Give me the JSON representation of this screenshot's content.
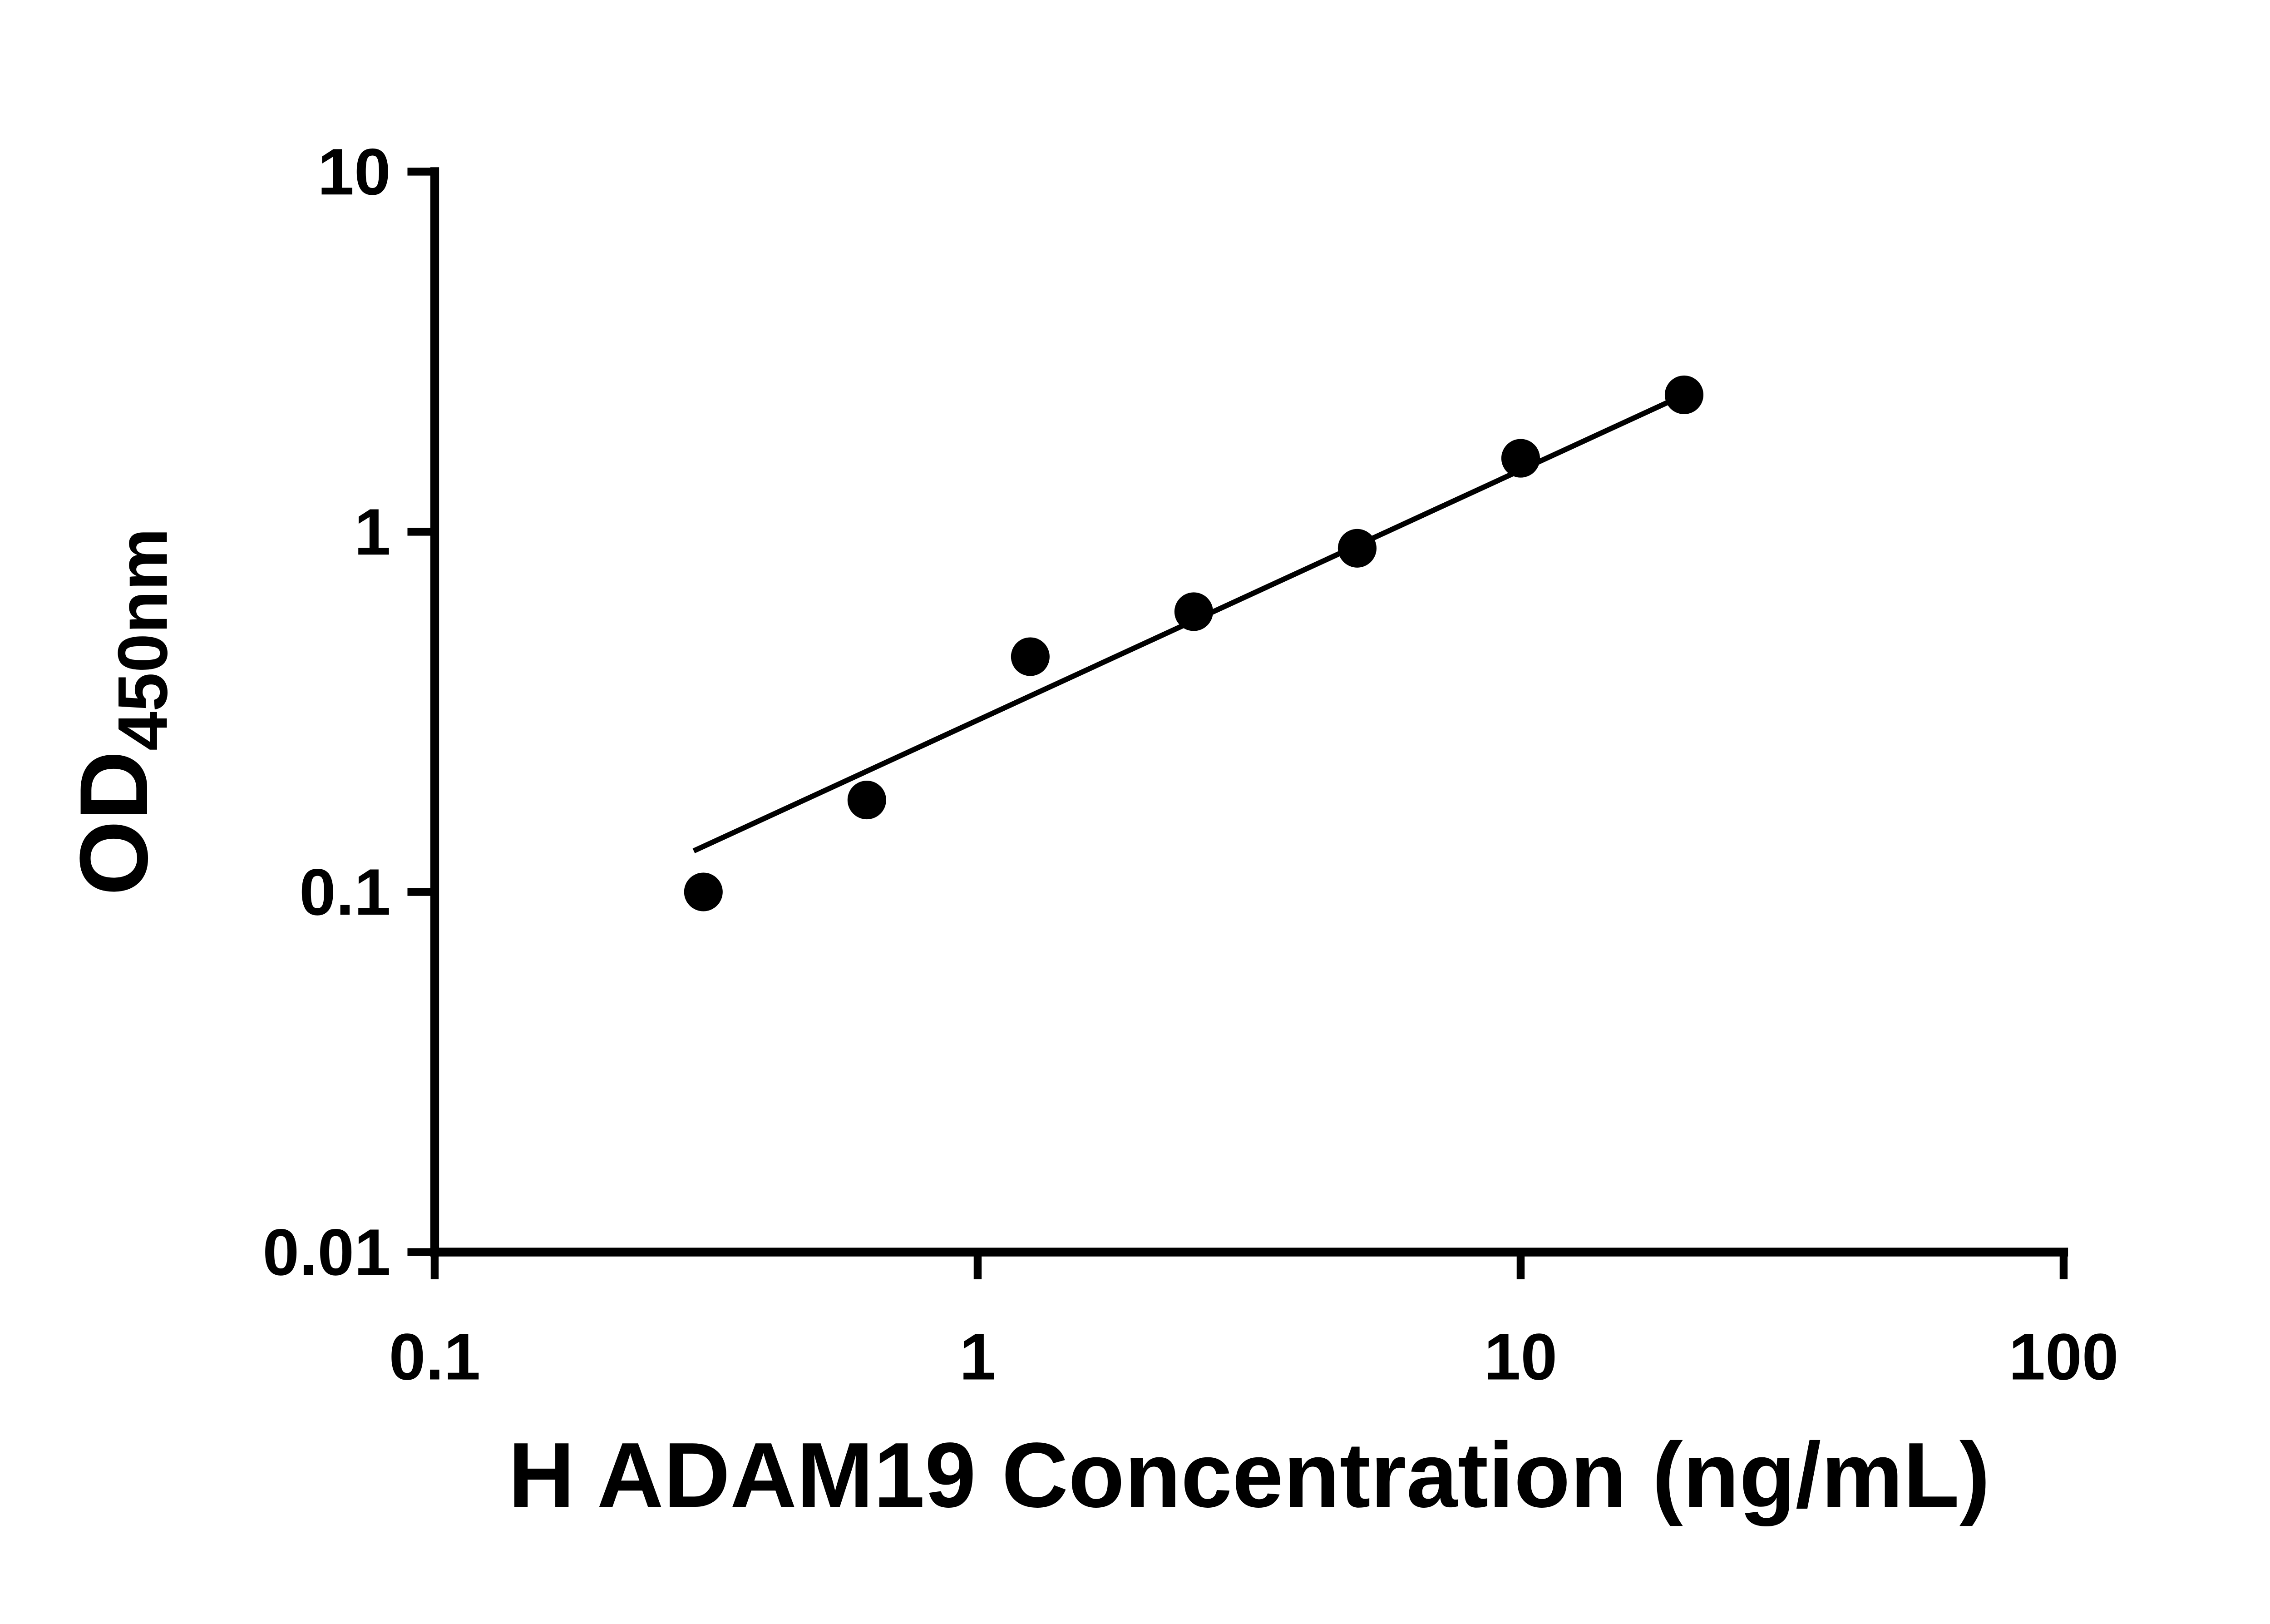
{
  "chart_data": {
    "type": "scatter",
    "title": "",
    "xlabel": "H ADAM19 Concentration (ng/mL)",
    "ylabel_main": "OD",
    "ylabel_sub": "450nm",
    "x_scale": "log",
    "y_scale": "log",
    "xlim": [
      0.1,
      100
    ],
    "ylim": [
      0.01,
      10
    ],
    "x_ticks": [
      0.1,
      1,
      10,
      100
    ],
    "x_tick_labels": [
      "0.1",
      "1",
      "10",
      "100"
    ],
    "y_ticks": [
      0.01,
      0.1,
      1,
      10
    ],
    "y_tick_labels": [
      "0.01",
      "0.1",
      "1",
      "10"
    ],
    "grid": false,
    "legend": "none",
    "point_color": "#000000",
    "line_color": "#000000",
    "series": [
      {
        "name": "standard-curve-points",
        "type": "scatter",
        "marker": "circle",
        "color": "#000000",
        "points": [
          {
            "x": 0.3125,
            "y": 0.1
          },
          {
            "x": 0.625,
            "y": 0.18
          },
          {
            "x": 1.25,
            "y": 0.45
          },
          {
            "x": 2.5,
            "y": 0.6
          },
          {
            "x": 5,
            "y": 0.9
          },
          {
            "x": 10,
            "y": 1.6
          },
          {
            "x": 20,
            "y": 2.4
          }
        ]
      },
      {
        "name": "fit-line",
        "type": "line",
        "color": "#000000",
        "points": [
          {
            "x": 0.3,
            "y": 0.13
          },
          {
            "x": 20,
            "y": 2.4
          }
        ]
      }
    ]
  }
}
